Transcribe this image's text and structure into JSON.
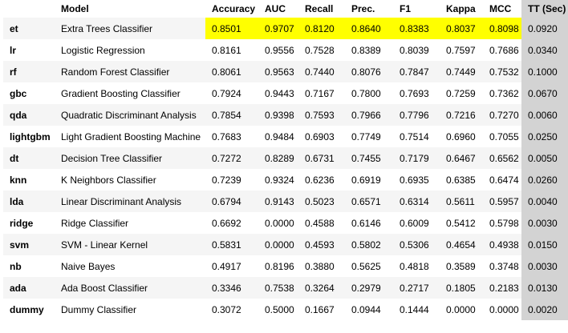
{
  "table": {
    "columns": [
      "",
      "Model",
      "Accuracy",
      "AUC",
      "Recall",
      "Prec.",
      "F1",
      "Kappa",
      "MCC",
      "TT (Sec)"
    ],
    "colors": {
      "highlight": "#ffff00",
      "tt_column": "#d3d3d3",
      "stripe": "#f5f5f5"
    },
    "rows": [
      {
        "id": "et",
        "model": "Extra Trees Classifier",
        "accuracy": "0.8501",
        "auc": "0.9707",
        "recall": "0.8120",
        "prec": "0.8640",
        "f1": "0.8383",
        "kappa": "0.8037",
        "mcc": "0.8098",
        "tt": "0.0920"
      },
      {
        "id": "lr",
        "model": "Logistic Regression",
        "accuracy": "0.8161",
        "auc": "0.9556",
        "recall": "0.7528",
        "prec": "0.8389",
        "f1": "0.8039",
        "kappa": "0.7597",
        "mcc": "0.7686",
        "tt": "0.0340"
      },
      {
        "id": "rf",
        "model": "Random Forest Classifier",
        "accuracy": "0.8061",
        "auc": "0.9563",
        "recall": "0.7440",
        "prec": "0.8076",
        "f1": "0.7847",
        "kappa": "0.7449",
        "mcc": "0.7532",
        "tt": "0.1000"
      },
      {
        "id": "gbc",
        "model": "Gradient Boosting Classifier",
        "accuracy": "0.7924",
        "auc": "0.9443",
        "recall": "0.7167",
        "prec": "0.7800",
        "f1": "0.7693",
        "kappa": "0.7259",
        "mcc": "0.7362",
        "tt": "0.0670"
      },
      {
        "id": "qda",
        "model": "Quadratic Discriminant Analysis",
        "accuracy": "0.7854",
        "auc": "0.9398",
        "recall": "0.7593",
        "prec": "0.7966",
        "f1": "0.7796",
        "kappa": "0.7216",
        "mcc": "0.7270",
        "tt": "0.0060"
      },
      {
        "id": "lightgbm",
        "model": "Light Gradient Boosting Machine",
        "accuracy": "0.7683",
        "auc": "0.9484",
        "recall": "0.6903",
        "prec": "0.7749",
        "f1": "0.7514",
        "kappa": "0.6960",
        "mcc": "0.7055",
        "tt": "0.0250"
      },
      {
        "id": "dt",
        "model": "Decision Tree Classifier",
        "accuracy": "0.7272",
        "auc": "0.8289",
        "recall": "0.6731",
        "prec": "0.7455",
        "f1": "0.7179",
        "kappa": "0.6467",
        "mcc": "0.6562",
        "tt": "0.0050"
      },
      {
        "id": "knn",
        "model": "K Neighbors Classifier",
        "accuracy": "0.7239",
        "auc": "0.9324",
        "recall": "0.6236",
        "prec": "0.6919",
        "f1": "0.6935",
        "kappa": "0.6385",
        "mcc": "0.6474",
        "tt": "0.0260"
      },
      {
        "id": "lda",
        "model": "Linear Discriminant Analysis",
        "accuracy": "0.6794",
        "auc": "0.9143",
        "recall": "0.5023",
        "prec": "0.6571",
        "f1": "0.6314",
        "kappa": "0.5611",
        "mcc": "0.5957",
        "tt": "0.0040"
      },
      {
        "id": "ridge",
        "model": "Ridge Classifier",
        "accuracy": "0.6692",
        "auc": "0.0000",
        "recall": "0.4588",
        "prec": "0.6146",
        "f1": "0.6009",
        "kappa": "0.5412",
        "mcc": "0.5798",
        "tt": "0.0030"
      },
      {
        "id": "svm",
        "model": "SVM - Linear Kernel",
        "accuracy": "0.5831",
        "auc": "0.0000",
        "recall": "0.4593",
        "prec": "0.5802",
        "f1": "0.5306",
        "kappa": "0.4654",
        "mcc": "0.4938",
        "tt": "0.0150"
      },
      {
        "id": "nb",
        "model": "Naive Bayes",
        "accuracy": "0.4917",
        "auc": "0.8196",
        "recall": "0.3880",
        "prec": "0.5625",
        "f1": "0.4818",
        "kappa": "0.3589",
        "mcc": "0.3748",
        "tt": "0.0030"
      },
      {
        "id": "ada",
        "model": "Ada Boost Classifier",
        "accuracy": "0.3346",
        "auc": "0.7538",
        "recall": "0.3264",
        "prec": "0.2979",
        "f1": "0.2717",
        "kappa": "0.1805",
        "mcc": "0.2183",
        "tt": "0.0130"
      },
      {
        "id": "dummy",
        "model": "Dummy Classifier",
        "accuracy": "0.3072",
        "auc": "0.5000",
        "recall": "0.1667",
        "prec": "0.0944",
        "f1": "0.1444",
        "kappa": "0.0000",
        "mcc": "0.0000",
        "tt": "0.0020"
      }
    ]
  }
}
